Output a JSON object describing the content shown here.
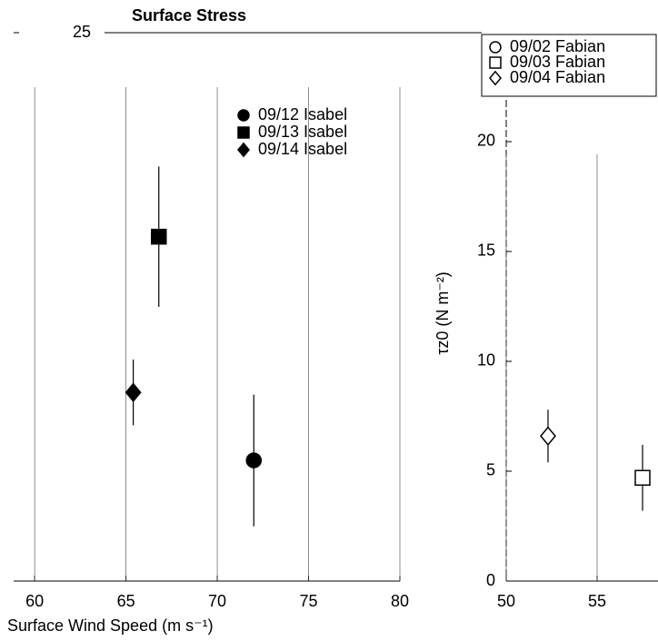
{
  "chart_data": [
    {
      "type": "scatter",
      "title": "Surface Stress",
      "x_label": "Surface Wind Speed (m s⁻¹)",
      "xlim": [
        58.85,
        80
      ],
      "xticks": [
        60,
        65,
        70,
        75,
        80
      ],
      "ylim": [
        0,
        25
      ],
      "yticks": [
        25
      ],
      "series": [
        {
          "name": "09/12 Isabel",
          "color": "#000000",
          "marker": "circle",
          "filled": true,
          "x": [
            72
          ],
          "values": [
            5.5
          ],
          "y_err": [
            3
          ]
        },
        {
          "name": "09/13 Isabel",
          "color": "#000000",
          "marker": "square",
          "filled": true,
          "x": [
            66.8
          ],
          "values": [
            15.7
          ],
          "y_err": [
            3.2
          ]
        },
        {
          "name": "09/14 Isabel",
          "color": "#000000",
          "marker": "diamond",
          "filled": true,
          "x": [
            65.4
          ],
          "values": [
            8.6
          ],
          "y_err": [
            1.5
          ]
        }
      ]
    },
    {
      "type": "scatter",
      "y_label": "τz0 (N m⁻²)",
      "xlim": [
        50,
        58.35
      ],
      "xticks": [
        50,
        55
      ],
      "ylim": [
        0,
        21.9
      ],
      "yticks": [
        0,
        5,
        10,
        15,
        20
      ],
      "series": [
        {
          "name": "09/02 Fabian",
          "color": "#000000",
          "marker": "circle",
          "filled": false,
          "x": [],
          "values": [],
          "y_err": []
        },
        {
          "name": "09/03 Fabian",
          "color": "#000000",
          "marker": "square",
          "filled": false,
          "x": [
            57.5
          ],
          "values": [
            4.7
          ],
          "y_err": [
            1.5
          ]
        },
        {
          "name": "09/04 Fabian",
          "color": "#000000",
          "marker": "diamond",
          "filled": false,
          "x": [
            52.3
          ],
          "values": [
            6.6
          ],
          "y_err": [
            1.2
          ]
        }
      ]
    }
  ]
}
